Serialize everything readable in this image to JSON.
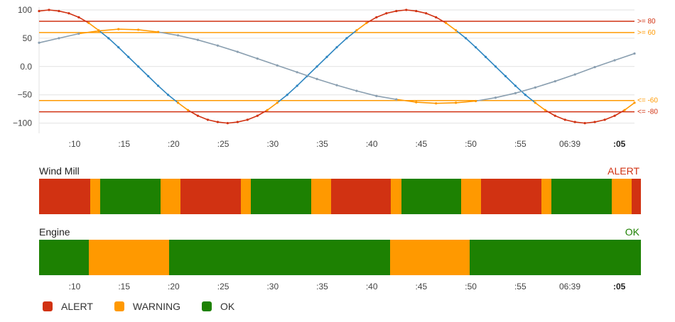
{
  "colors": {
    "alert": "#d13212",
    "warning": "#ff9900",
    "ok": "#1d8102",
    "line1": "#2e86c1",
    "line2": "#8a9fb0",
    "grid": "#e2e2e2"
  },
  "chart_data": {
    "type": "line",
    "x_ticks": [
      ":10",
      ":15",
      ":20",
      ":25",
      ":30",
      ":35",
      ":40",
      ":45",
      ":50",
      ":55",
      "06:39",
      ":05"
    ],
    "bold_tick": ":05",
    "y_ticks": [
      "100",
      "50",
      "0.0",
      "−50",
      "−100"
    ],
    "ylim": [
      -118,
      105
    ],
    "thresholds": [
      {
        "label": ">= 80",
        "value": 80,
        "level": "alert"
      },
      {
        "label": ">= 60",
        "value": 60,
        "level": "warning"
      },
      {
        "label": "<= -60",
        "value": -60,
        "level": "warning"
      },
      {
        "label": "<= -80",
        "value": -80,
        "level": "alert"
      }
    ],
    "series": [
      {
        "x": [
          0,
          0.5,
          1,
          1.5,
          2,
          2.5,
          3,
          3.5,
          4,
          4.5,
          5,
          5.5,
          6,
          6.5,
          7,
          7.5,
          8,
          8.5,
          9,
          9.5,
          10,
          10.5,
          11,
          11.5,
          12,
          12.5,
          13,
          13.5,
          14,
          14.5,
          15,
          15.5,
          16,
          16.5,
          17,
          17.5,
          18,
          18.5,
          19,
          19.5,
          20,
          20.5,
          21,
          21.5,
          22,
          22.5,
          23,
          23.5,
          24,
          24.5,
          25,
          25.5,
          26,
          26.5,
          27,
          27.5,
          28,
          28.5,
          29,
          29.5,
          30
        ],
        "y": [
          98,
          100,
          98,
          94,
          87,
          77,
          64,
          50,
          34,
          17,
          0,
          -17,
          -34,
          -50,
          -64,
          -77,
          -87,
          -94,
          -98,
          -100,
          -98,
          -94,
          -87,
          -77,
          -64,
          -50,
          -34,
          -17,
          0,
          17,
          34,
          50,
          64,
          77,
          87,
          94,
          98,
          100,
          98,
          94,
          87,
          77,
          64,
          50,
          34,
          17,
          0,
          -17,
          -34,
          -50,
          -64,
          -77,
          -87,
          -94,
          -98,
          -100,
          -98,
          -94,
          -87,
          -77,
          -64
        ]
      },
      {
        "x": [
          0,
          1,
          2,
          3,
          4,
          5,
          6,
          7,
          8,
          9,
          10,
          11,
          12,
          13,
          14,
          15,
          16,
          17,
          18,
          19,
          20,
          21,
          22,
          23,
          24,
          25,
          26,
          27,
          28,
          29,
          30
        ],
        "y": [
          42,
          50,
          58,
          63,
          66,
          65,
          61,
          55,
          47,
          37,
          26,
          14,
          2,
          -10,
          -22,
          -33,
          -43,
          -52,
          -58,
          -63,
          -65,
          -64,
          -61,
          -55,
          -47,
          -37,
          -26,
          -14,
          -1,
          11,
          23
        ]
      }
    ]
  },
  "status_bars": [
    {
      "title": "Wind Mill",
      "status": "ALERT",
      "status_level": "alert",
      "segments": [
        [
          "alert",
          8.5
        ],
        [
          "warning",
          1.7
        ],
        [
          "ok",
          10.0
        ],
        [
          "warning",
          3.3
        ],
        [
          "alert",
          10.0
        ],
        [
          "warning",
          1.7
        ],
        [
          "ok",
          10.0
        ],
        [
          "warning",
          3.3
        ],
        [
          "alert",
          10.0
        ],
        [
          "warning",
          1.7
        ],
        [
          "ok",
          10.0
        ],
        [
          "warning",
          3.3
        ],
        [
          "alert",
          10.0
        ],
        [
          "warning",
          1.7
        ],
        [
          "ok",
          10.0
        ],
        [
          "warning",
          3.3
        ],
        [
          "alert",
          1.5
        ]
      ]
    },
    {
      "title": "Engine",
      "status": "OK",
      "status_level": "ok",
      "segments": [
        [
          "ok",
          8.3
        ],
        [
          "warning",
          13.3
        ],
        [
          "ok",
          36.7
        ],
        [
          "warning",
          13.3
        ],
        [
          "ok",
          28.4
        ]
      ]
    }
  ],
  "bottom_ticks": [
    ":10",
    ":15",
    ":20",
    ":25",
    ":30",
    ":35",
    ":40",
    ":45",
    ":50",
    ":55",
    "06:39",
    ":05"
  ],
  "legend": [
    {
      "label": "ALERT",
      "level": "alert"
    },
    {
      "label": "WARNING",
      "level": "warning"
    },
    {
      "label": "OK",
      "level": "ok"
    }
  ]
}
